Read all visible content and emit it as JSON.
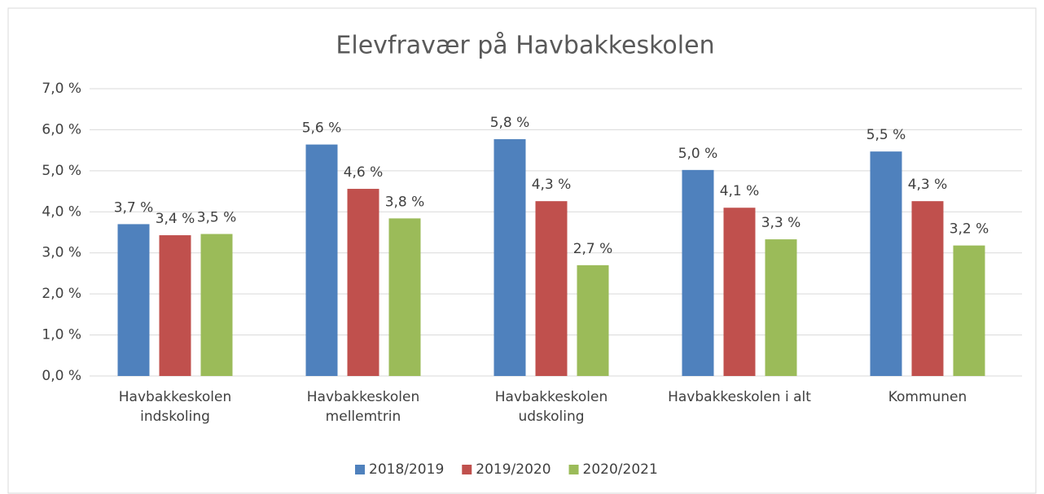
{
  "chart_data": {
    "type": "bar",
    "title": "Elevfravær på Havbakkeskolen",
    "categories": [
      "Havbakkeskolen indskoling",
      "Havbakkeskolen mellemtrin",
      "Havbakkeskolen udskoling",
      "Havbakkeskolen i alt",
      "Kommunen"
    ],
    "series": [
      {
        "name": "2018/2019",
        "color": "#4f81bd",
        "values": [
          3.7,
          5.64,
          5.77,
          5.02,
          5.47
        ],
        "value_labels": [
          "3,7 %",
          "5,6 %",
          "5,8 %",
          "5,0 %",
          "5,5 %"
        ]
      },
      {
        "name": "2019/2020",
        "color": "#c0504d",
        "values": [
          3.43,
          4.56,
          4.26,
          4.1,
          4.26
        ],
        "value_labels": [
          "3,4 %",
          "4,6 %",
          "4,3 %",
          "4,1 %",
          "4,3 %"
        ]
      },
      {
        "name": "2020/2021",
        "color": "#9bbb59",
        "values": [
          3.46,
          3.84,
          2.7,
          3.33,
          3.18
        ],
        "value_labels": [
          "3,5 %",
          "3,8 %",
          "2,7 %",
          "3,3 %",
          "3,2 %"
        ]
      }
    ],
    "ylim": [
      0,
      7
    ],
    "yticks": [
      {
        "value": 0,
        "label": "0,0 %"
      },
      {
        "value": 1,
        "label": "1,0 %"
      },
      {
        "value": 2,
        "label": "2,0 %"
      },
      {
        "value": 3,
        "label": "3,0 %"
      },
      {
        "value": 4,
        "label": "4,0 %"
      },
      {
        "value": 5,
        "label": "5,0 %"
      },
      {
        "value": 6,
        "label": "6,0 %"
      },
      {
        "value": 7,
        "label": "7,0 %"
      }
    ],
    "grid": true,
    "legend": "bottom"
  }
}
